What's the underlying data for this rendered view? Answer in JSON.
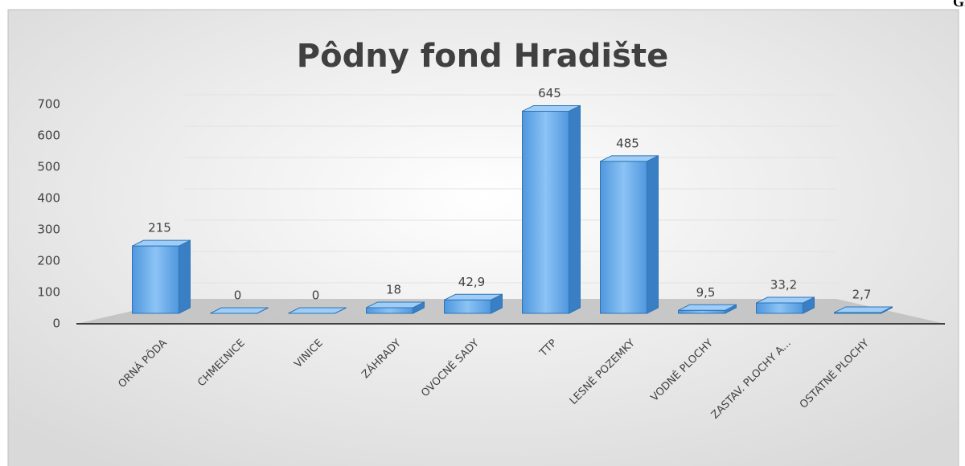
{
  "caption": "Graf č.",
  "chart_data": {
    "type": "bar3d",
    "title": "Pôdny fond Hradište",
    "categories": [
      "ORNÁ PÔDA",
      "CHMEĽNICE",
      "VINICE",
      "ZÁHRADY",
      "OVOCNÉ SADY",
      "TTP",
      "LESNÉ POZEMKY",
      "VODNÉ PLOCHY",
      "ZASTAV. PLOCHY A...",
      "OSTATNÉ PLOCHY"
    ],
    "values": [
      215,
      0,
      0,
      18,
      42.9,
      645,
      485,
      9.5,
      33.2,
      2.7
    ],
    "value_labels": [
      "215",
      "0",
      "0",
      "18",
      "42,9",
      "645",
      "485",
      "9,5",
      "33,2",
      "2,7"
    ],
    "color": "#5ba3e8",
    "ylim": [
      0,
      700
    ],
    "yticks": [
      0,
      100,
      200,
      300,
      400,
      500,
      600,
      700
    ],
    "grid": true
  }
}
